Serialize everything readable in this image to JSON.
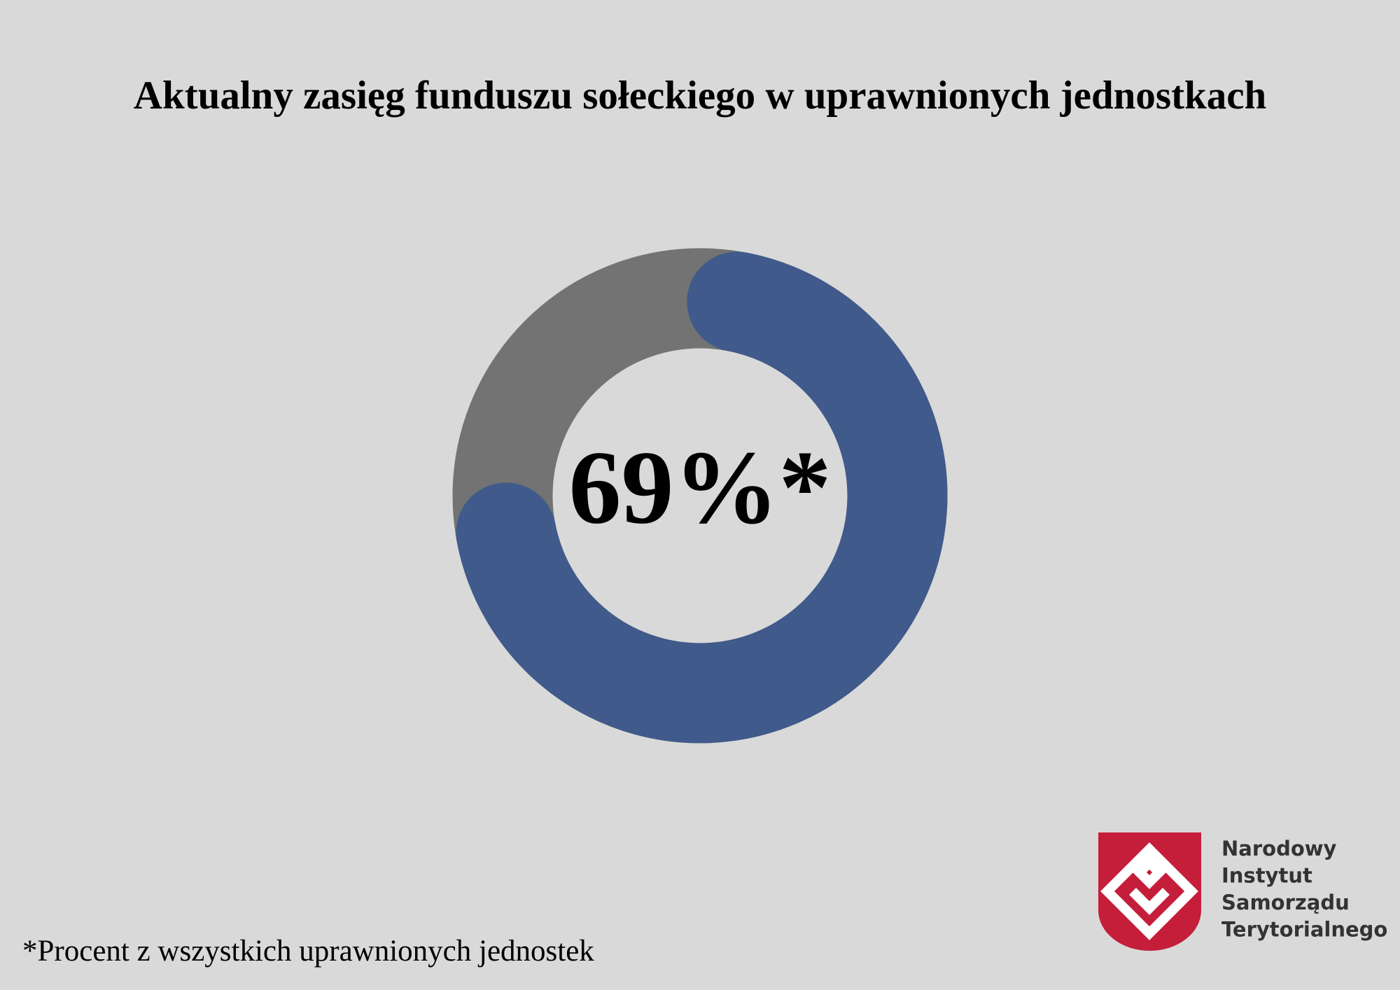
{
  "chart_data": {
    "type": "donut",
    "title": "Aktualny zasięg funduszu sołeckiego w uprawnionych jednostkach",
    "values": [
      69
    ],
    "value_labels": [
      "69%*"
    ],
    "ylim": [
      0,
      100
    ],
    "color": "#3f5a8b",
    "rest_color": "#737373"
  },
  "footnote": "*Procent z wszystkich uprawnionych jednostek",
  "logo": {
    "lines": [
      "Narodowy",
      "Instytut",
      "Samorządu",
      "Terytorialnego"
    ]
  }
}
